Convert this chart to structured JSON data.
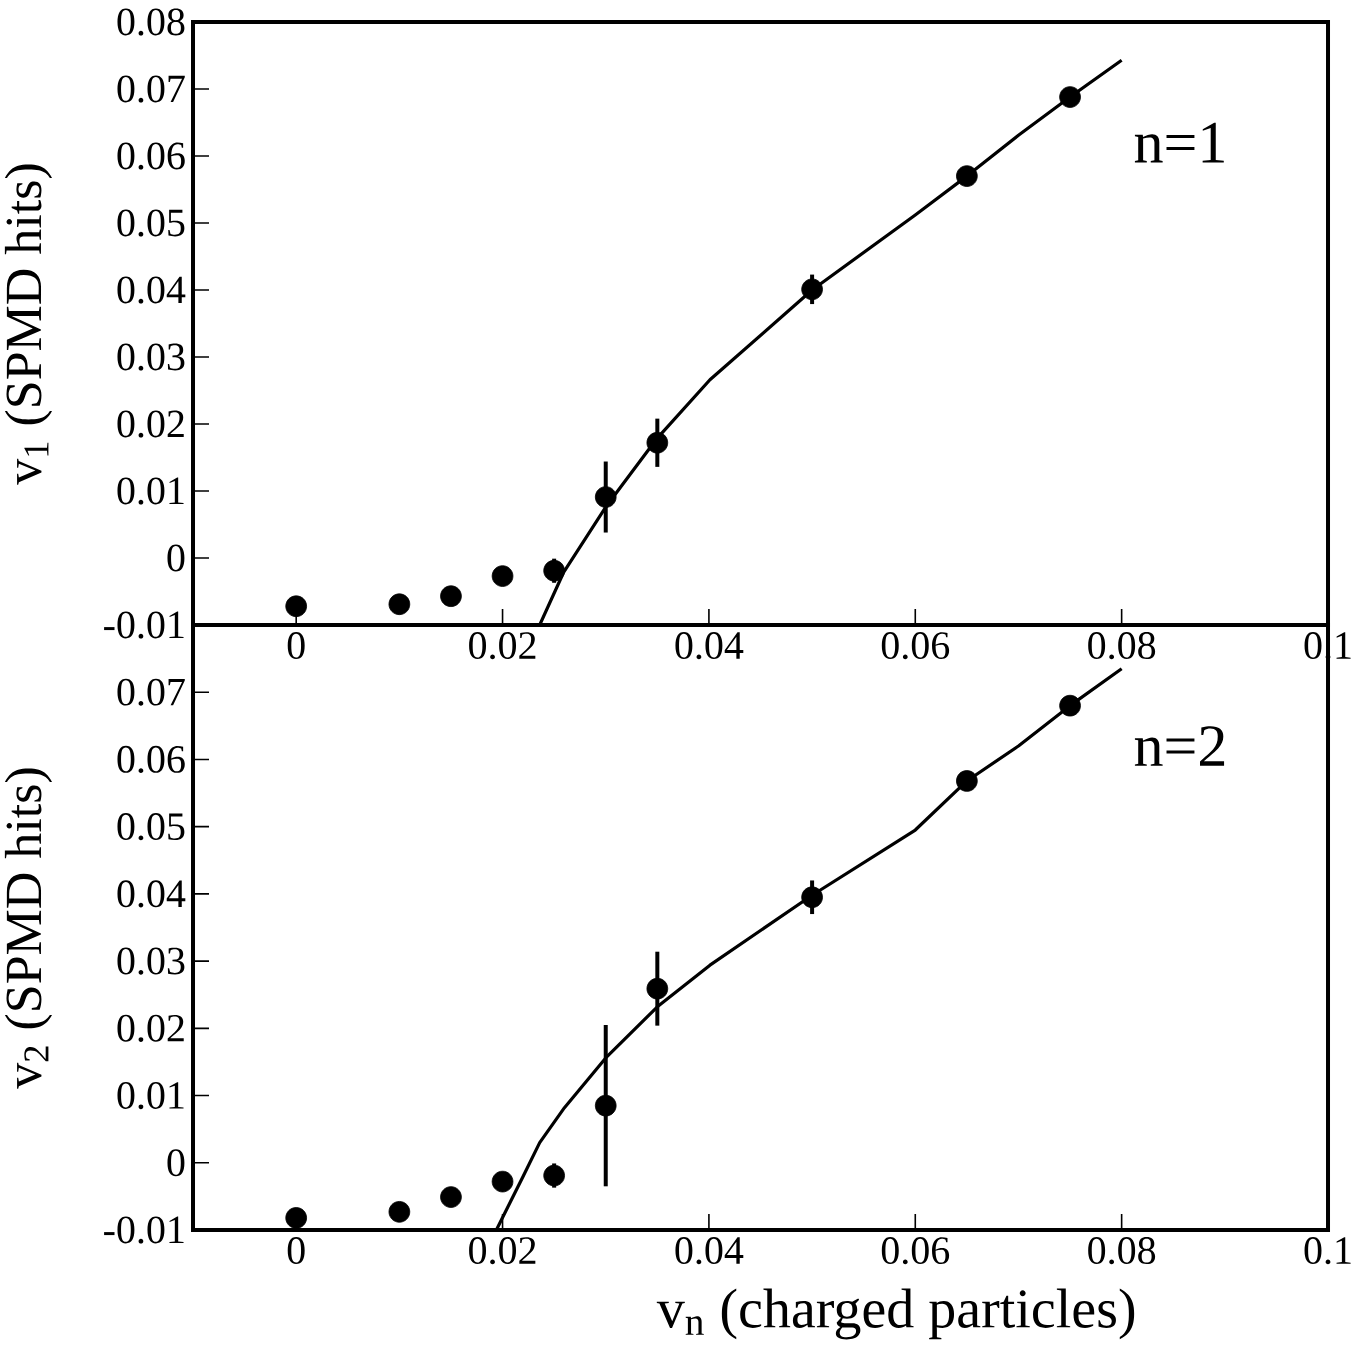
{
  "chart_data": [
    {
      "type": "scatter",
      "ylabel": "v$_{1}$ (SPMD hits)",
      "xlim": [
        -0.01,
        0.1
      ],
      "ylim": [
        -0.01,
        0.08
      ],
      "xticks": [
        0,
        0.02,
        0.04,
        0.06,
        0.08,
        0.1
      ],
      "yticks": [
        -0.01,
        0,
        0.01,
        0.02,
        0.03,
        0.04,
        0.05,
        0.06,
        0.07,
        0.08
      ],
      "annotations": [
        "n=1"
      ],
      "series": [
        {
          "type": "scatter",
          "color": "#000000",
          "x": [
            0,
            0.01,
            0.015,
            0.02,
            0.025,
            0.03,
            0.035,
            0.05,
            0.065,
            0.075
          ],
          "values": [
            -0.0072,
            -0.0069,
            -0.0057,
            -0.0027,
            -0.0019,
            0.0091,
            0.0172,
            0.0401,
            0.057,
            0.0688
          ],
          "errors": [
            null,
            null,
            null,
            null,
            0.0018,
            0.0053,
            0.0036,
            0.0022,
            0.001,
            null
          ]
        },
        {
          "type": "line",
          "color": "#000000",
          "x": [
            0.0236,
            0.0259,
            0.03,
            0.035,
            0.0401,
            0.05,
            0.06,
            0.065,
            0.07,
            0.075,
            0.08
          ],
          "values": [
            -0.01,
            -0.0022,
            0.0076,
            0.0179,
            0.0266,
            0.04,
            0.0512,
            0.057,
            0.0631,
            0.0688,
            0.0743
          ]
        }
      ]
    },
    {
      "type": "scatter",
      "ylabel": "v$_{2}$ (SPMD hits)",
      "xlabel": "v$_{n}$ (charged particles)",
      "xlim": [
        -0.01,
        0.1
      ],
      "ylim": [
        -0.01,
        0.08
      ],
      "xticks": [
        0,
        0.02,
        0.04,
        0.06,
        0.08,
        0.1
      ],
      "yticks": [
        -0.01,
        0,
        0.01,
        0.02,
        0.03,
        0.04,
        0.05,
        0.06,
        0.07,
        {
          "value": 0.08,
          "label": null
        }
      ],
      "annotations": [
        "n=2"
      ],
      "series": [
        {
          "type": "scatter",
          "color": "#000000",
          "x": [
            0,
            0.01,
            0.015,
            0.02,
            0.025,
            0.03,
            0.035,
            0.05,
            0.065,
            0.075
          ],
          "values": [
            -0.0082,
            -0.0073,
            -0.0051,
            -0.0028,
            -0.0019,
            0.0085,
            0.0259,
            0.0395,
            0.0568,
            0.068
          ],
          "errors": [
            null,
            null,
            null,
            null,
            0.0018,
            0.012,
            0.0055,
            0.0025,
            null,
            null
          ]
        },
        {
          "type": "line",
          "color": "#000000",
          "x": [
            0.0194,
            0.022,
            0.0236,
            0.026,
            0.03,
            0.035,
            0.0401,
            0.05,
            0.06,
            0.065,
            0.07,
            0.075,
            0.08
          ],
          "values": [
            -0.01,
            -0.002,
            0.003,
            0.0082,
            0.0156,
            0.0232,
            0.0294,
            0.0398,
            0.0495,
            0.0568,
            0.062,
            0.068,
            0.0735
          ]
        }
      ]
    }
  ]
}
